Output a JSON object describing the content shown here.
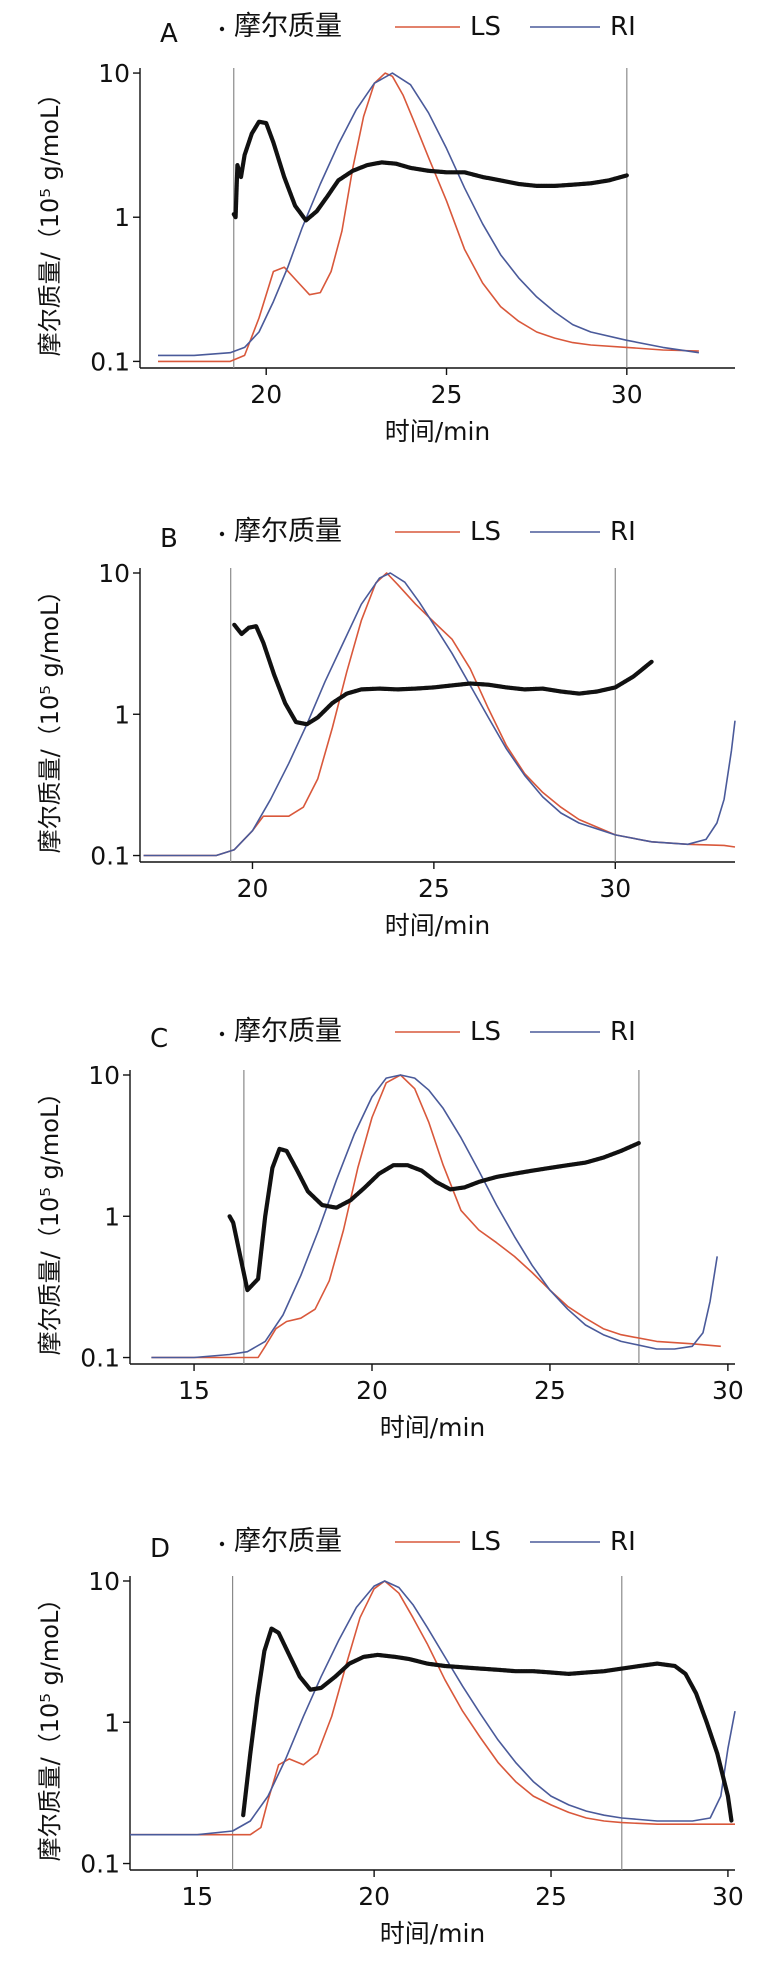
{
  "colors": {
    "ls": "#d9583b",
    "ri": "#4a5a9a",
    "molar": "#111111",
    "marker": "#8a8a8a"
  },
  "chart_data": [
    {
      "panel": "A",
      "type": "line",
      "yscale": "log",
      "xlabel": "时间/min",
      "ylabel": "摩尔质量/（10⁵ g/moL）",
      "legend": [
        "摩尔质量",
        "LS",
        "RI"
      ],
      "legend_position": "top",
      "xticks": [
        20,
        25,
        30
      ],
      "yticks": [
        "0.1",
        "1",
        "10"
      ],
      "xlim": [
        16.5,
        33
      ],
      "ylim": [
        0.09,
        10.5
      ],
      "markers": [
        19.1,
        30
      ],
      "series": [
        {
          "name": "LS",
          "x": [
            17,
            18,
            19,
            19.4,
            19.8,
            20.2,
            20.5,
            20.9,
            21.2,
            21.5,
            21.8,
            22.1,
            22.4,
            22.7,
            23,
            23.3,
            23.5,
            23.8,
            24.1,
            24.5,
            25,
            25.5,
            26,
            26.5,
            27,
            27.5,
            28,
            28.5,
            29,
            30,
            31,
            32
          ],
          "y": [
            0.1,
            0.1,
            0.1,
            0.11,
            0.2,
            0.42,
            0.45,
            0.35,
            0.29,
            0.3,
            0.42,
            0.8,
            2.2,
            5.0,
            8.5,
            10,
            9.5,
            7.0,
            4.6,
            2.6,
            1.3,
            0.6,
            0.35,
            0.24,
            0.19,
            0.16,
            0.145,
            0.135,
            0.13,
            0.125,
            0.12,
            0.118
          ]
        },
        {
          "name": "RI",
          "x": [
            17,
            18,
            19,
            19.4,
            19.8,
            20.2,
            20.6,
            21,
            21.5,
            22,
            22.5,
            23,
            23.5,
            24,
            24.5,
            25,
            25.5,
            26,
            26.5,
            27,
            27.5,
            28,
            28.5,
            29,
            30,
            31,
            32
          ],
          "y": [
            0.11,
            0.11,
            0.115,
            0.125,
            0.16,
            0.26,
            0.45,
            0.85,
            1.7,
            3.2,
            5.6,
            8.5,
            10,
            8.3,
            5.3,
            3.0,
            1.6,
            0.9,
            0.55,
            0.38,
            0.28,
            0.22,
            0.18,
            0.16,
            0.14,
            0.125,
            0.115
          ]
        },
        {
          "name": "摩尔质量",
          "x": [
            19.1,
            19.15,
            19.2,
            19.3,
            19.4,
            19.6,
            19.8,
            20.0,
            20.2,
            20.5,
            20.8,
            21.1,
            21.4,
            21.7,
            22,
            22.4,
            22.8,
            23.2,
            23.6,
            24,
            24.5,
            25,
            25.5,
            26,
            26.5,
            27,
            27.5,
            28,
            28.5,
            29,
            29.5,
            30
          ],
          "y": [
            1.05,
            1.0,
            2.3,
            1.9,
            2.7,
            3.8,
            4.6,
            4.5,
            3.3,
            1.9,
            1.2,
            0.95,
            1.1,
            1.4,
            1.8,
            2.1,
            2.3,
            2.4,
            2.35,
            2.2,
            2.1,
            2.05,
            2.05,
            1.9,
            1.8,
            1.7,
            1.65,
            1.65,
            1.68,
            1.72,
            1.8,
            1.95
          ]
        }
      ]
    },
    {
      "panel": "B",
      "type": "line",
      "yscale": "log",
      "xlabel": "时间/min",
      "ylabel": "摩尔质量/（10⁵ g/moL）",
      "legend": [
        "摩尔质量",
        "LS",
        "RI"
      ],
      "legend_position": "top",
      "xticks": [
        20,
        25,
        30
      ],
      "yticks": [
        "0.1",
        "1",
        "10"
      ],
      "xlim": [
        16.9,
        33.3
      ],
      "ylim": [
        0.09,
        10.5
      ],
      "markers": [
        19.4,
        30
      ],
      "series": [
        {
          "name": "LS",
          "x": [
            17,
            18,
            19,
            19.5,
            20,
            20.3,
            20.7,
            21,
            21.4,
            21.8,
            22.2,
            22.6,
            23,
            23.4,
            23.7,
            24,
            24.5,
            25,
            25.5,
            26,
            26.5,
            27,
            27.5,
            28,
            28.5,
            29,
            30,
            31,
            32,
            33,
            33.3
          ],
          "y": [
            0.1,
            0.1,
            0.1,
            0.11,
            0.15,
            0.19,
            0.19,
            0.19,
            0.22,
            0.35,
            0.8,
            2.0,
            4.6,
            8.5,
            10,
            8.3,
            6.0,
            4.5,
            3.4,
            2.1,
            1.1,
            0.6,
            0.38,
            0.28,
            0.22,
            0.18,
            0.14,
            0.125,
            0.12,
            0.118,
            0.115
          ]
        },
        {
          "name": "RI",
          "x": [
            17,
            18,
            19,
            19.5,
            20,
            20.5,
            21,
            21.5,
            22,
            22.5,
            23,
            23.5,
            23.8,
            24.2,
            24.6,
            25,
            25.5,
            26,
            26.5,
            27,
            27.5,
            28,
            28.5,
            29,
            30,
            31,
            32,
            32.5,
            32.8,
            33,
            33.2,
            33.3
          ],
          "y": [
            0.1,
            0.1,
            0.1,
            0.11,
            0.15,
            0.25,
            0.45,
            0.85,
            1.7,
            3.2,
            6.0,
            9.2,
            10,
            8.6,
            6.2,
            4.3,
            2.7,
            1.6,
            0.95,
            0.57,
            0.37,
            0.26,
            0.2,
            0.17,
            0.14,
            0.125,
            0.12,
            0.13,
            0.17,
            0.25,
            0.55,
            0.9
          ]
        },
        {
          "name": "摩尔质量",
          "x": [
            19.5,
            19.7,
            19.9,
            20.1,
            20.3,
            20.6,
            20.9,
            21.2,
            21.5,
            21.8,
            22.2,
            22.6,
            23,
            23.5,
            24,
            24.5,
            25,
            25.5,
            26,
            26.5,
            27,
            27.5,
            28,
            28.5,
            29,
            29.5,
            30,
            30.5,
            31
          ],
          "y": [
            4.3,
            3.7,
            4.1,
            4.2,
            3.2,
            1.9,
            1.2,
            0.88,
            0.85,
            0.95,
            1.2,
            1.4,
            1.5,
            1.52,
            1.5,
            1.52,
            1.55,
            1.6,
            1.65,
            1.62,
            1.55,
            1.5,
            1.52,
            1.45,
            1.4,
            1.45,
            1.55,
            1.85,
            2.35
          ]
        }
      ]
    },
    {
      "panel": "C",
      "type": "line",
      "yscale": "log",
      "xlabel": "时间/min",
      "ylabel": "摩尔质量/（10⁵ g/moL）",
      "legend": [
        "摩尔质量",
        "LS",
        "RI"
      ],
      "legend_position": "top",
      "xticks": [
        15,
        20,
        25,
        30
      ],
      "yticks": [
        "0.1",
        "1",
        "10"
      ],
      "xlim": [
        13.2,
        30.2
      ],
      "ylim": [
        0.09,
        10.5
      ],
      "markers": [
        16.4,
        27.5
      ],
      "series": [
        {
          "name": "LS",
          "x": [
            13.8,
            15,
            16,
            16.5,
            16.8,
            17,
            17.3,
            17.6,
            18,
            18.4,
            18.8,
            19.2,
            19.6,
            20,
            20.4,
            20.8,
            21.2,
            21.6,
            22,
            22.5,
            23,
            23.5,
            24,
            24.5,
            25,
            25.5,
            26,
            26.5,
            27,
            28,
            29,
            29.8
          ],
          "y": [
            0.1,
            0.1,
            0.1,
            0.1,
            0.1,
            0.12,
            0.16,
            0.18,
            0.19,
            0.22,
            0.35,
            0.8,
            2.2,
            5.0,
            8.8,
            10,
            8.0,
            4.6,
            2.3,
            1.1,
            0.8,
            0.65,
            0.52,
            0.4,
            0.3,
            0.23,
            0.19,
            0.16,
            0.145,
            0.13,
            0.125,
            0.12
          ]
        },
        {
          "name": "RI",
          "x": [
            13.8,
            15,
            16,
            16.5,
            17,
            17.5,
            18,
            18.5,
            19,
            19.5,
            20,
            20.4,
            20.8,
            21.2,
            21.6,
            22,
            22.5,
            23,
            23.5,
            24,
            24.5,
            25,
            25.5,
            26,
            26.5,
            27,
            28,
            28.5,
            29,
            29.3,
            29.5,
            29.7
          ],
          "y": [
            0.1,
            0.1,
            0.105,
            0.11,
            0.13,
            0.2,
            0.38,
            0.8,
            1.8,
            3.8,
            7.0,
            9.5,
            10,
            9.5,
            7.8,
            5.8,
            3.6,
            2.1,
            1.2,
            0.72,
            0.45,
            0.3,
            0.22,
            0.17,
            0.145,
            0.13,
            0.115,
            0.115,
            0.12,
            0.15,
            0.25,
            0.52
          ]
        },
        {
          "name": "摩尔质量",
          "x": [
            16,
            16.1,
            16.5,
            16.8,
            17.0,
            17.2,
            17.4,
            17.6,
            17.9,
            18.2,
            18.6,
            19,
            19.4,
            19.8,
            20.2,
            20.6,
            21,
            21.4,
            21.8,
            22.2,
            22.6,
            23,
            23.5,
            24,
            24.5,
            25,
            25.5,
            26,
            26.5,
            27,
            27.5
          ],
          "y": [
            1.0,
            0.9,
            0.3,
            0.36,
            1.0,
            2.2,
            3.0,
            2.9,
            2.1,
            1.5,
            1.2,
            1.15,
            1.3,
            1.6,
            2.0,
            2.3,
            2.3,
            2.1,
            1.75,
            1.55,
            1.6,
            1.75,
            1.9,
            2.0,
            2.1,
            2.2,
            2.3,
            2.4,
            2.6,
            2.9,
            3.3
          ]
        }
      ]
    },
    {
      "panel": "D",
      "type": "line",
      "yscale": "log",
      "xlabel": "时间/min",
      "ylabel": "摩尔质量/（10⁵ g/moL）",
      "legend": [
        "摩尔质量",
        "LS",
        "RI"
      ],
      "legend_position": "top",
      "xticks": [
        15,
        20,
        25,
        30
      ],
      "yticks": [
        "0.1",
        "1",
        "10"
      ],
      "xlim": [
        13.1,
        30.2
      ],
      "ylim": [
        0.09,
        10.5
      ],
      "markers": [
        16,
        27
      ],
      "series": [
        {
          "name": "LS",
          "x": [
            13.1,
            15,
            16,
            16.5,
            16.8,
            17,
            17.3,
            17.6,
            18,
            18.4,
            18.8,
            19.2,
            19.6,
            20,
            20.3,
            20.7,
            21.1,
            21.5,
            22,
            22.5,
            23,
            23.5,
            24,
            24.5,
            25,
            25.5,
            26,
            26.5,
            27,
            28,
            29,
            30.2
          ],
          "y": [
            0.16,
            0.16,
            0.16,
            0.16,
            0.18,
            0.28,
            0.5,
            0.55,
            0.5,
            0.6,
            1.1,
            2.5,
            5.5,
            8.8,
            10,
            8.2,
            5.5,
            3.6,
            2.0,
            1.2,
            0.78,
            0.52,
            0.38,
            0.3,
            0.26,
            0.23,
            0.21,
            0.2,
            0.195,
            0.19,
            0.19,
            0.19
          ]
        },
        {
          "name": "RI",
          "x": [
            13.1,
            15,
            16,
            16.5,
            17,
            17.5,
            18,
            18.5,
            19,
            19.5,
            20,
            20.3,
            20.7,
            21.1,
            21.5,
            22,
            22.5,
            23,
            23.5,
            24,
            24.5,
            25,
            25.5,
            26,
            26.5,
            27,
            28,
            29,
            29.5,
            29.8,
            30,
            30.2
          ],
          "y": [
            0.16,
            0.16,
            0.17,
            0.2,
            0.3,
            0.55,
            1.1,
            2.1,
            3.8,
            6.5,
            9.2,
            10,
            9.0,
            6.8,
            4.7,
            2.9,
            1.8,
            1.15,
            0.75,
            0.52,
            0.38,
            0.3,
            0.26,
            0.235,
            0.22,
            0.21,
            0.2,
            0.2,
            0.21,
            0.3,
            0.65,
            1.2
          ]
        },
        {
          "name": "摩尔质量",
          "x": [
            16.3,
            16.5,
            16.7,
            16.9,
            17.1,
            17.3,
            17.6,
            17.9,
            18.2,
            18.5,
            18.9,
            19.3,
            19.7,
            20.1,
            20.6,
            21,
            21.5,
            22,
            22.5,
            23,
            23.5,
            24,
            24.5,
            25,
            25.5,
            26,
            26.5,
            27,
            27.5,
            28,
            28.5,
            28.8,
            29.1,
            29.4,
            29.7,
            30,
            30.1
          ],
          "y": [
            0.22,
            0.6,
            1.5,
            3.2,
            4.6,
            4.3,
            3.0,
            2.1,
            1.7,
            1.75,
            2.1,
            2.6,
            2.9,
            3.0,
            2.9,
            2.8,
            2.6,
            2.5,
            2.45,
            2.4,
            2.35,
            2.3,
            2.3,
            2.25,
            2.2,
            2.25,
            2.3,
            2.4,
            2.5,
            2.6,
            2.5,
            2.2,
            1.6,
            1.0,
            0.6,
            0.3,
            0.2
          ]
        }
      ]
    }
  ]
}
